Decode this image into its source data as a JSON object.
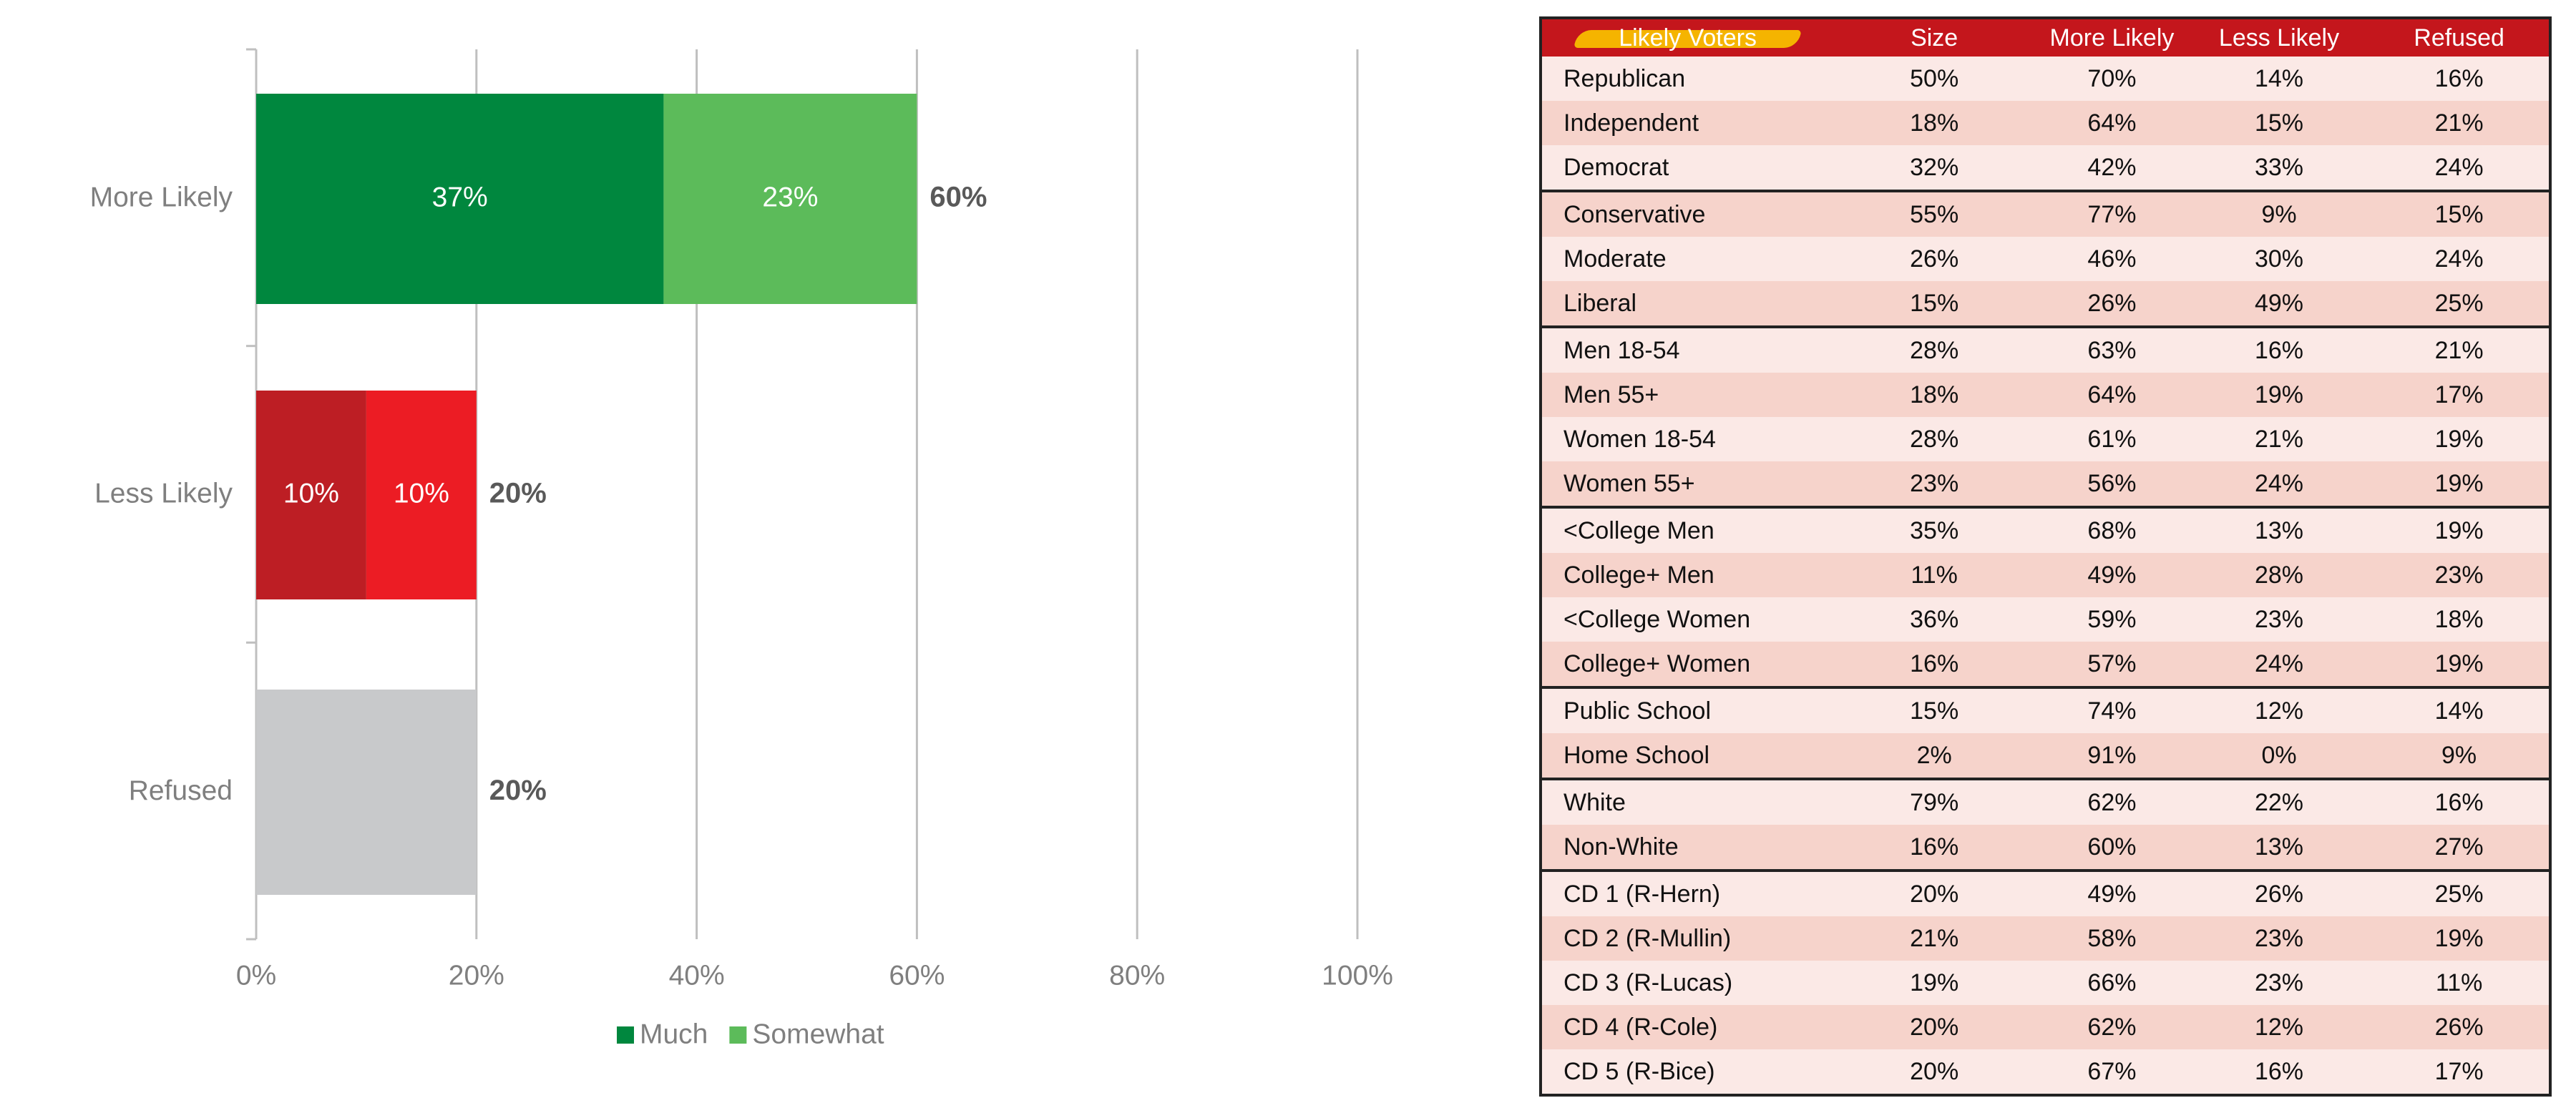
{
  "chart_data": {
    "type": "stacked_barh",
    "categories": [
      "More Likely",
      "Less Likely",
      "Refused"
    ],
    "series": [
      {
        "name": "Much",
        "color": "#00873e",
        "colors": [
          "#00873e",
          "#bd1e24",
          "#c8c9cb"
        ],
        "values": [
          37,
          10,
          20
        ],
        "value_labels": [
          "37%",
          "10%",
          null
        ]
      },
      {
        "name": "Somewhat",
        "color": "#5cbb5a",
        "colors": [
          "#5cbb5a",
          "#ec1c24",
          "#c8c9cb"
        ],
        "values": [
          23,
          10,
          null
        ],
        "value_labels": [
          "23%",
          "10%",
          null
        ]
      }
    ],
    "totals": [
      60,
      20,
      20
    ],
    "total_labels": [
      "60%",
      "20%",
      "20%"
    ],
    "xlim": [
      0,
      100
    ],
    "xticks": [
      {
        "value": 0,
        "label": "0%"
      },
      {
        "value": 20,
        "label": "20%"
      },
      {
        "value": 40,
        "label": "40%"
      },
      {
        "value": 60,
        "label": "60%"
      },
      {
        "value": 80,
        "label": "80%"
      },
      {
        "value": 100,
        "label": "100%"
      }
    ],
    "grid": true,
    "legend": "bottom"
  },
  "table": {
    "header": [
      "Likely Voters",
      "Size",
      "More Likely",
      "Less Likely",
      "Refused"
    ],
    "rows": [
      [
        "Republican",
        "50%",
        "70%",
        "14%",
        "16%"
      ],
      [
        "Independent",
        "18%",
        "64%",
        "15%",
        "21%"
      ],
      [
        "Democrat",
        "32%",
        "42%",
        "33%",
        "24%"
      ],
      [
        "Conservative",
        "55%",
        "77%",
        "9%",
        "15%"
      ],
      [
        "Moderate",
        "26%",
        "46%",
        "30%",
        "24%"
      ],
      [
        "Liberal",
        "15%",
        "26%",
        "49%",
        "25%"
      ],
      [
        "Men 18-54",
        "28%",
        "63%",
        "16%",
        "21%"
      ],
      [
        "Men 55+",
        "18%",
        "64%",
        "19%",
        "17%"
      ],
      [
        "Women 18-54",
        "28%",
        "61%",
        "21%",
        "19%"
      ],
      [
        "Women 55+",
        "23%",
        "56%",
        "24%",
        "19%"
      ],
      [
        "<College Men",
        "35%",
        "68%",
        "13%",
        "19%"
      ],
      [
        "College+ Men",
        "11%",
        "49%",
        "28%",
        "23%"
      ],
      [
        "<College Women",
        "36%",
        "59%",
        "23%",
        "18%"
      ],
      [
        "College+ Women",
        "16%",
        "57%",
        "24%",
        "19%"
      ],
      [
        "Public School",
        "15%",
        "74%",
        "12%",
        "14%"
      ],
      [
        "Home School",
        "2%",
        "91%",
        "0%",
        "9%"
      ],
      [
        "White",
        "79%",
        "62%",
        "22%",
        "16%"
      ],
      [
        "Non-White",
        "16%",
        "60%",
        "13%",
        "27%"
      ],
      [
        "CD 1 (R-Hern)",
        "20%",
        "49%",
        "26%",
        "25%"
      ],
      [
        "CD 2 (R-Mullin)",
        "21%",
        "58%",
        "23%",
        "19%"
      ],
      [
        "CD 3 (R-Lucas)",
        "19%",
        "66%",
        "23%",
        "11%"
      ],
      [
        "CD 4 (R-Cole)",
        "20%",
        "62%",
        "12%",
        "26%"
      ],
      [
        "CD 5 (R-Bice)",
        "20%",
        "67%",
        "16%",
        "17%"
      ]
    ]
  }
}
